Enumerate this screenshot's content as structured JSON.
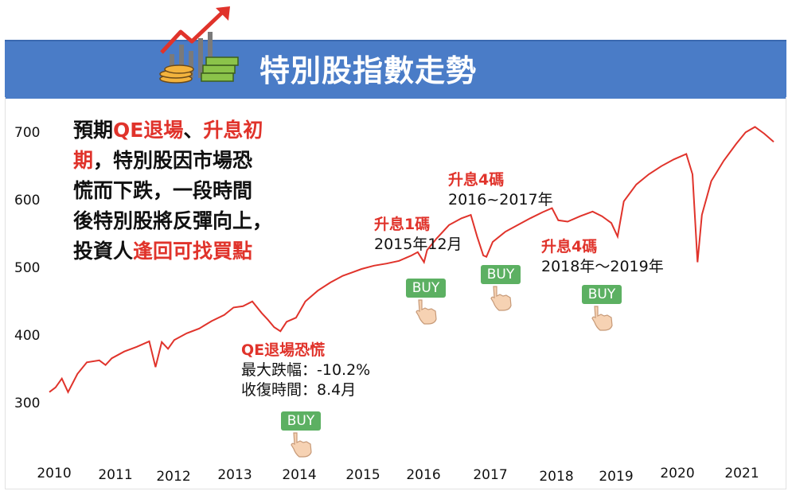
{
  "header": {
    "title": "特別股指數走勢"
  },
  "note": {
    "line1_a": "預期",
    "line1_b": "QE退場",
    "line1_c": "、",
    "line1_d": "升息初",
    "line2_a": "期",
    "line2_b": "，特別股因市場恐",
    "line3": "慌而下跌，一段時間",
    "line4": "後特別股將反彈向上，",
    "line5_a": "投資人",
    "line5_b": "逢回可找買點"
  },
  "annotations": {
    "qe": {
      "title": "QE退場恐慌",
      "line1": "最大跌幅：-10.2%",
      "line2": "收復時間：8.4月"
    },
    "hike1": {
      "title": "升息1碼",
      "line1": "2015年12月"
    },
    "hike4a": {
      "title": "升息4碼",
      "line1": "2016~2017年"
    },
    "hike4b": {
      "title": "升息4碼",
      "line1": "2018年～2019年"
    }
  },
  "buttons": {
    "buy": "BUY"
  },
  "colors": {
    "banner": "#4a7cc7",
    "line": "#e0332b",
    "highlight": "#e0332b",
    "buy": "#5cb062"
  },
  "icons": {
    "logo": "rising-chart-money-icon",
    "hand": "pointing-hand-icon"
  },
  "chart_data": {
    "type": "line",
    "title": "",
    "xlabel": "",
    "ylabel": "",
    "x_ticks": [
      "2010",
      "2011",
      "2012",
      "2013",
      "2014",
      "2015",
      "2016",
      "2017",
      "2018",
      "2019",
      "2020",
      "2021"
    ],
    "y_ticks": [
      300,
      400,
      500,
      600,
      700
    ],
    "xlim": [
      2010.0,
      2021.6
    ],
    "ylim": [
      270,
      720
    ],
    "grid": false,
    "series": [
      {
        "values": [
          [
            2010.0,
            318
          ],
          [
            2010.1,
            325
          ],
          [
            2010.2,
            338
          ],
          [
            2010.3,
            318
          ],
          [
            2010.45,
            345
          ],
          [
            2010.6,
            362
          ],
          [
            2010.8,
            365
          ],
          [
            2010.9,
            358
          ],
          [
            2011.0,
            368
          ],
          [
            2011.2,
            378
          ],
          [
            2011.4,
            385
          ],
          [
            2011.6,
            393
          ],
          [
            2011.7,
            355
          ],
          [
            2011.8,
            392
          ],
          [
            2011.9,
            382
          ],
          [
            2012.0,
            395
          ],
          [
            2012.2,
            405
          ],
          [
            2012.4,
            412
          ],
          [
            2012.6,
            423
          ],
          [
            2012.8,
            432
          ],
          [
            2012.95,
            443
          ],
          [
            2013.1,
            445
          ],
          [
            2013.25,
            452
          ],
          [
            2013.4,
            435
          ],
          [
            2013.5,
            425
          ],
          [
            2013.6,
            414
          ],
          [
            2013.7,
            408
          ],
          [
            2013.8,
            422
          ],
          [
            2013.95,
            428
          ],
          [
            2014.1,
            452
          ],
          [
            2014.3,
            468
          ],
          [
            2014.5,
            480
          ],
          [
            2014.7,
            490
          ],
          [
            2014.85,
            495
          ],
          [
            2015.0,
            500
          ],
          [
            2015.2,
            505
          ],
          [
            2015.4,
            508
          ],
          [
            2015.6,
            512
          ],
          [
            2015.8,
            520
          ],
          [
            2015.9,
            525
          ],
          [
            2016.0,
            510
          ],
          [
            2016.05,
            528
          ],
          [
            2016.2,
            545
          ],
          [
            2016.4,
            565
          ],
          [
            2016.6,
            575
          ],
          [
            2016.75,
            580
          ],
          [
            2016.85,
            548
          ],
          [
            2016.95,
            520
          ],
          [
            2017.0,
            518
          ],
          [
            2017.1,
            540
          ],
          [
            2017.3,
            555
          ],
          [
            2017.5,
            565
          ],
          [
            2017.7,
            575
          ],
          [
            2017.9,
            584
          ],
          [
            2018.05,
            590
          ],
          [
            2018.15,
            572
          ],
          [
            2018.3,
            570
          ],
          [
            2018.5,
            578
          ],
          [
            2018.7,
            585
          ],
          [
            2018.85,
            578
          ],
          [
            2019.0,
            568
          ],
          [
            2019.1,
            548
          ],
          [
            2019.2,
            600
          ],
          [
            2019.4,
            625
          ],
          [
            2019.6,
            640
          ],
          [
            2019.8,
            652
          ],
          [
            2020.0,
            662
          ],
          [
            2020.2,
            670
          ],
          [
            2020.3,
            640
          ],
          [
            2020.38,
            510
          ],
          [
            2020.45,
            580
          ],
          [
            2020.6,
            630
          ],
          [
            2020.8,
            660
          ],
          [
            2021.0,
            685
          ],
          [
            2021.15,
            702
          ],
          [
            2021.3,
            710
          ],
          [
            2021.45,
            700
          ],
          [
            2021.6,
            688
          ]
        ]
      }
    ]
  }
}
